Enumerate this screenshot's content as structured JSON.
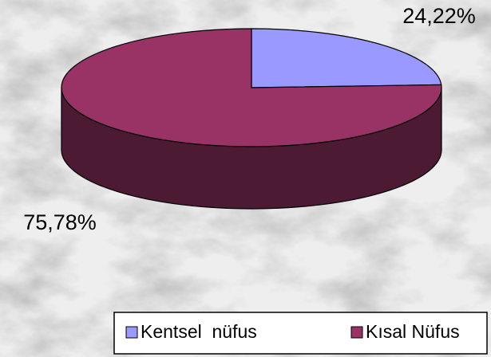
{
  "chart_data": {
    "type": "pie",
    "categories": [
      "Kentsel  nüfus",
      "Kısal Nüfus"
    ],
    "values": [
      24.22,
      75.78
    ],
    "value_labels": [
      "24,22%",
      "75,78%"
    ],
    "colors": [
      "#9999ff",
      "#993366"
    ],
    "side_colors": [
      "#4d4d80",
      "#4d1a33"
    ],
    "legend": "bottom-right"
  }
}
